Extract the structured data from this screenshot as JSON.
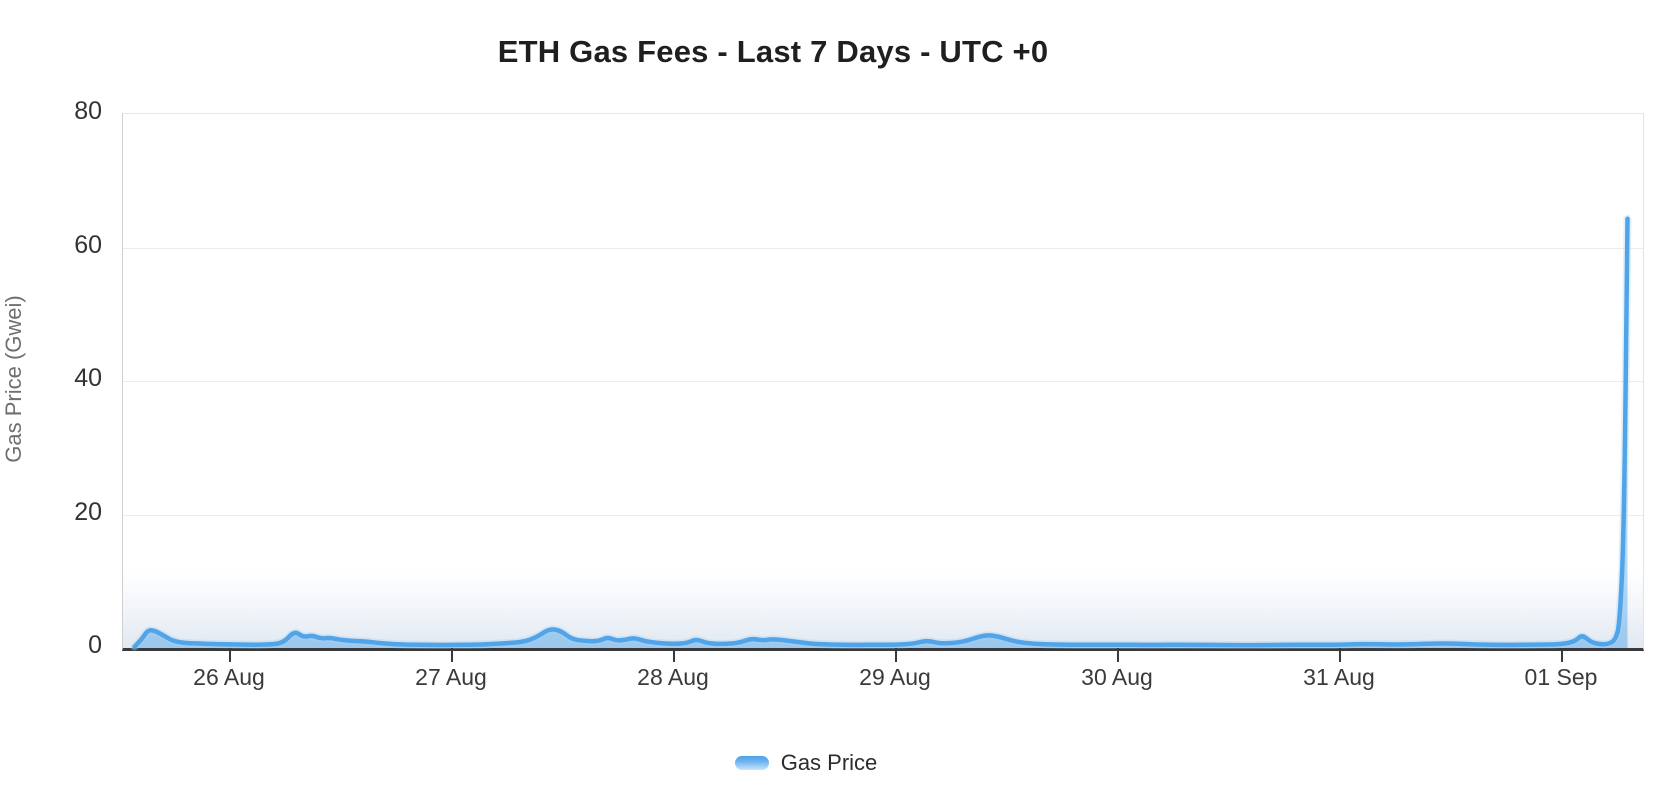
{
  "page": {
    "title": "ETH Gas Fees - Last 7 Days - UTC +0"
  },
  "legend": {
    "label": "Gas Price"
  },
  "colors": {
    "line": "#52a4e8",
    "line_glow": "#a9d3f4",
    "area_fill_bottom": "rgba(85,166,232,0.50)",
    "area_fill_top": "rgba(85,166,232,0.04)",
    "axis": "#39393b",
    "grid": "#ececec",
    "title_text": "#1f1f1f",
    "tick_text": "#333333",
    "axis_title_text": "#6f6f6f"
  },
  "chart_data": {
    "type": "area",
    "title": "ETH Gas Fees - Last 7 Days - UTC +0",
    "xlabel": "",
    "ylabel": "Gas Price (Gwei)",
    "ylim": [
      0,
      80
    ],
    "y_ticks": [
      0,
      20,
      40,
      60,
      80
    ],
    "y_tick_labels": [
      "80",
      "60",
      "40",
      "20",
      "0"
    ],
    "categories": [
      "26 Aug",
      "27 Aug",
      "28 Aug",
      "29 Aug",
      "30 Aug",
      "31 Aug",
      "01 Sep"
    ],
    "x_tick_positions_days": [
      0,
      1,
      2,
      3,
      4,
      5,
      6
    ],
    "x_range_days": [
      -0.482,
      6.365
    ],
    "grid": "horizontal-only",
    "legend_position": "bottom-center",
    "legend_entries": [
      "Gas Price"
    ],
    "series": [
      {
        "name": "Gas Price",
        "unit": "Gwei",
        "points_format": "[days_from_26_Aug_00UTC, gwei]",
        "points": [
          [
            -0.43,
            0.2
          ],
          [
            -0.4,
            1.2
          ],
          [
            -0.37,
            2.7
          ],
          [
            -0.34,
            2.6
          ],
          [
            -0.3,
            1.9
          ],
          [
            -0.26,
            1.1
          ],
          [
            -0.21,
            0.75
          ],
          [
            -0.15,
            0.7
          ],
          [
            -0.08,
            0.6
          ],
          [
            0.0,
            0.55
          ],
          [
            0.08,
            0.5
          ],
          [
            0.16,
            0.5
          ],
          [
            0.24,
            0.7
          ],
          [
            0.29,
            2.6
          ],
          [
            0.33,
            1.6
          ],
          [
            0.37,
            1.9
          ],
          [
            0.41,
            1.4
          ],
          [
            0.45,
            1.55
          ],
          [
            0.5,
            1.2
          ],
          [
            0.56,
            1.05
          ],
          [
            0.62,
            0.95
          ],
          [
            0.7,
            0.65
          ],
          [
            0.8,
            0.5
          ],
          [
            0.9,
            0.45
          ],
          [
            1.0,
            0.45
          ],
          [
            1.1,
            0.5
          ],
          [
            1.22,
            0.65
          ],
          [
            1.32,
            0.9
          ],
          [
            1.38,
            1.6
          ],
          [
            1.44,
            2.9
          ],
          [
            1.49,
            2.6
          ],
          [
            1.54,
            1.3
          ],
          [
            1.6,
            1.05
          ],
          [
            1.66,
            1.0
          ],
          [
            1.7,
            1.65
          ],
          [
            1.74,
            1.1
          ],
          [
            1.78,
            1.2
          ],
          [
            1.82,
            1.55
          ],
          [
            1.87,
            1.0
          ],
          [
            1.93,
            0.75
          ],
          [
            2.0,
            0.6
          ],
          [
            2.06,
            0.75
          ],
          [
            2.1,
            1.35
          ],
          [
            2.15,
            0.7
          ],
          [
            2.22,
            0.6
          ],
          [
            2.29,
            0.75
          ],
          [
            2.35,
            1.45
          ],
          [
            2.4,
            1.1
          ],
          [
            2.44,
            1.35
          ],
          [
            2.5,
            1.15
          ],
          [
            2.56,
            0.9
          ],
          [
            2.63,
            0.6
          ],
          [
            2.72,
            0.5
          ],
          [
            2.82,
            0.45
          ],
          [
            2.92,
            0.5
          ],
          [
            3.0,
            0.5
          ],
          [
            3.08,
            0.65
          ],
          [
            3.14,
            1.15
          ],
          [
            3.2,
            0.65
          ],
          [
            3.3,
            0.85
          ],
          [
            3.4,
            2.0
          ],
          [
            3.46,
            1.75
          ],
          [
            3.53,
            1.0
          ],
          [
            3.62,
            0.6
          ],
          [
            3.72,
            0.5
          ],
          [
            3.85,
            0.5
          ],
          [
            4.0,
            0.5
          ],
          [
            4.15,
            0.45
          ],
          [
            4.3,
            0.5
          ],
          [
            4.5,
            0.42
          ],
          [
            4.7,
            0.45
          ],
          [
            4.9,
            0.5
          ],
          [
            5.0,
            0.48
          ],
          [
            5.1,
            0.6
          ],
          [
            5.25,
            0.5
          ],
          [
            5.4,
            0.65
          ],
          [
            5.5,
            0.7
          ],
          [
            5.62,
            0.5
          ],
          [
            5.75,
            0.45
          ],
          [
            5.88,
            0.5
          ],
          [
            6.0,
            0.55
          ],
          [
            6.06,
            1.0
          ],
          [
            6.09,
            2.0
          ],
          [
            6.13,
            0.9
          ],
          [
            6.17,
            0.55
          ],
          [
            6.21,
            0.6
          ],
          [
            6.24,
            1.2
          ],
          [
            6.26,
            3.5
          ],
          [
            6.28,
            18
          ],
          [
            6.295,
            64.3
          ]
        ]
      }
    ]
  }
}
